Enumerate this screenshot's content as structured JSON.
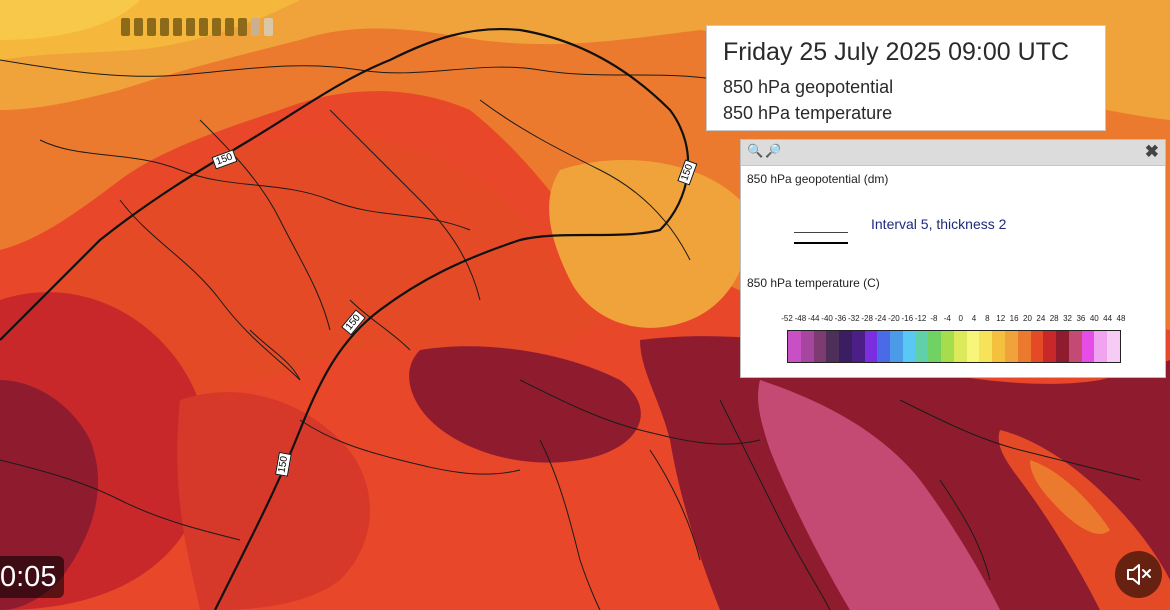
{
  "title_box": {
    "title": "Friday 25 July 2025 09:00 UTC",
    "layers": [
      "850 hPa geopotential",
      "850 hPa temperature"
    ]
  },
  "legend": {
    "geopotential_heading": "850 hPa geopotential (dm)",
    "interval_text": "Interval 5, thickness 2",
    "temperature_heading": "850 hPa temperature (C)",
    "scale_labels": [
      "-52",
      "-48",
      "-44",
      "-40",
      "-36",
      "-32",
      "-28",
      "-24",
      "-20",
      "-16",
      "-12",
      "-8",
      "-4",
      "0",
      "4",
      "8",
      "12",
      "16",
      "20",
      "24",
      "28",
      "32",
      "36",
      "40",
      "44",
      "48"
    ],
    "scale_colors": [
      "#c94fc4",
      "#a6469e",
      "#7e3b72",
      "#4e2f5a",
      "#3b1d63",
      "#4b1f86",
      "#7a2ee0",
      "#4b6ae8",
      "#4c9be9",
      "#59c8f2",
      "#5fd0a8",
      "#6fd263",
      "#a6dd4d",
      "#dbe95a",
      "#f7f57a",
      "#f6e35a",
      "#f3c13e",
      "#f0a33a",
      "#ec7a2e",
      "#e44a26",
      "#c8282a",
      "#8f1c2e",
      "#c44a73",
      "#e64de6",
      "#f0a3ef",
      "#f7ccf4"
    ]
  },
  "contour_labels": [
    "150",
    "150",
    "150",
    "150"
  ],
  "time": "0:05",
  "icons": {
    "zoom_in": "zoom-in-icon",
    "zoom_out": "zoom-out-icon",
    "close": "close-icon",
    "mute": "speaker-muted-icon"
  },
  "colors": {
    "warm": "#f5b83d",
    "hot": "#ec7a2e",
    "hotter": "#e44a26",
    "very_hot": "#c8282a",
    "extreme": "#8f1c2e",
    "extreme_pink": "#c44a73",
    "orange_deep": "#f0a33a"
  }
}
